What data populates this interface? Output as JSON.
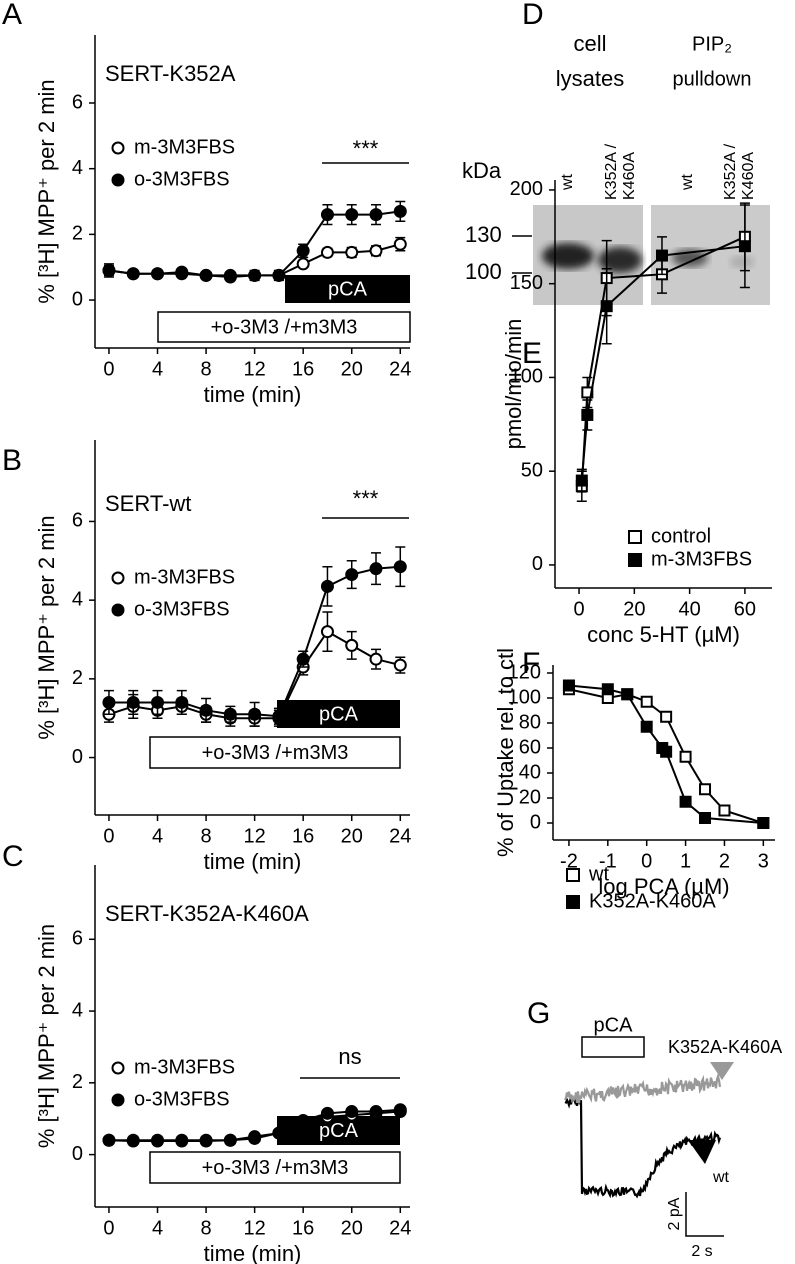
{
  "panel_labels": [
    "A",
    "B",
    "C",
    "D",
    "E",
    "F",
    "G"
  ],
  "chart_data": [
    {
      "type": "line",
      "title": "SERT-K352A",
      "x_label": "time (min)",
      "y_label": "% [³H] MPP⁺ per 2 min",
      "x": [
        0,
        2,
        4,
        6,
        8,
        10,
        12,
        14,
        16,
        18,
        20,
        22,
        24
      ],
      "xlim": [
        -1.15,
        24.8
      ],
      "xticks": [
        0,
        4,
        8,
        12,
        16,
        20,
        24
      ],
      "ylim": [
        -1.46,
        8.07
      ],
      "yticks": [
        0,
        2,
        4,
        6
      ],
      "series": [
        {
          "name": "m-3M3FBS",
          "marker": "circle-open",
          "color": "#000000",
          "values": [
            0.9,
            0.8,
            0.8,
            0.8,
            0.75,
            0.7,
            0.75,
            0.75,
            1.1,
            1.45,
            1.45,
            1.5,
            1.7
          ],
          "errors": [
            0.15,
            0.1,
            0.08,
            0.08,
            0.08,
            0.1,
            0.1,
            0.1,
            0.1,
            0.12,
            0.15,
            0.15,
            0.2
          ]
        },
        {
          "name": "o-3M3FBS",
          "marker": "circle-filled",
          "color": "#000000",
          "values": [
            0.9,
            0.8,
            0.8,
            0.85,
            0.75,
            0.75,
            0.75,
            0.75,
            1.5,
            2.6,
            2.6,
            2.6,
            2.7
          ],
          "errors": [
            0.2,
            0.1,
            0.08,
            0.1,
            0.08,
            0.1,
            0.15,
            0.15,
            0.2,
            0.3,
            0.3,
            0.3,
            0.3
          ]
        }
      ],
      "significance": "***",
      "treatment_bar": "pCA",
      "treatment_box": "+o-3M3 /+m3M3"
    },
    {
      "type": "line",
      "title": "SERT-wt",
      "x_label": "time (min)",
      "y_label": "% [³H] MPP⁺ per 2 min",
      "x": [
        0,
        2,
        4,
        6,
        8,
        10,
        12,
        14,
        16,
        18,
        20,
        22,
        24
      ],
      "xlim": [
        -1.15,
        24.8
      ],
      "xticks": [
        0,
        4,
        8,
        12,
        16,
        20,
        24
      ],
      "ylim": [
        -1.46,
        8.07
      ],
      "yticks": [
        0,
        2,
        4,
        6
      ],
      "series": [
        {
          "name": "m-3M3FBS",
          "marker": "circle-open",
          "color": "#000000",
          "values": [
            1.1,
            1.3,
            1.2,
            1.3,
            1.1,
            1.0,
            1.0,
            1.0,
            2.3,
            3.2,
            2.85,
            2.5,
            2.35
          ],
          "errors": [
            0.2,
            0.3,
            0.2,
            0.2,
            0.2,
            0.2,
            0.2,
            0.2,
            0.2,
            0.5,
            0.35,
            0.25,
            0.2
          ]
        },
        {
          "name": "o-3M3FBS",
          "marker": "circle-filled",
          "color": "#000000",
          "values": [
            1.4,
            1.4,
            1.4,
            1.4,
            1.2,
            1.1,
            1.1,
            1.05,
            2.5,
            4.35,
            4.65,
            4.8,
            4.85
          ],
          "errors": [
            0.3,
            0.3,
            0.3,
            0.3,
            0.3,
            0.2,
            0.3,
            0.2,
            0.2,
            0.5,
            0.35,
            0.4,
            0.5
          ]
        }
      ],
      "significance": "***",
      "treatment_bar": "pCA",
      "treatment_box": "+o-3M3 /+m3M3"
    },
    {
      "type": "line",
      "title": "SERT-K352A-K460A",
      "x_label": "time (min)",
      "y_label": "% [³H] MPP⁺ per 2 min",
      "x": [
        0,
        2,
        4,
        6,
        8,
        10,
        12,
        14,
        16,
        18,
        20,
        22,
        24
      ],
      "xlim": [
        -1.15,
        24.8
      ],
      "xticks": [
        0,
        4,
        8,
        12,
        16,
        20,
        24
      ],
      "ylim": [
        -1.46,
        8.07
      ],
      "yticks": [
        0,
        2,
        4,
        6
      ],
      "series": [
        {
          "name": "m-3M3FBS",
          "marker": "circle-open",
          "color": "#000000",
          "values": [
            0.4,
            0.38,
            0.38,
            0.38,
            0.38,
            0.4,
            0.45,
            0.6,
            0.9,
            1.05,
            1.1,
            1.15,
            1.2
          ]
        },
        {
          "name": "o-3M3FBS",
          "marker": "circle-filled",
          "color": "#000000",
          "values": [
            0.4,
            0.4,
            0.4,
            0.4,
            0.4,
            0.4,
            0.5,
            0.6,
            0.95,
            1.15,
            1.2,
            1.2,
            1.25
          ]
        }
      ],
      "significance": "ns",
      "treatment_bar": "pCA",
      "treatment_box": "+o-3M3 /+m3M3"
    },
    {
      "type": "line",
      "x_label": "conc 5-HT (µM)",
      "y_label": "pmol/mio/min",
      "xlim": [
        -8.7,
        69.8
      ],
      "xticks": [
        0,
        20,
        40,
        60
      ],
      "ylim": [
        -12.3,
        205.3
      ],
      "yticks": [
        0,
        50,
        100,
        150,
        200
      ],
      "series": [
        {
          "name": "control",
          "marker": "square-open",
          "color": "#000000",
          "x": [
            1,
            3,
            10,
            30,
            60
          ],
          "values": [
            42,
            92,
            153,
            155,
            175
          ],
          "errors": [
            8,
            8,
            20,
            10,
            18
          ]
        },
        {
          "name": "m-3M3FBS",
          "marker": "square-filled",
          "color": "#000000",
          "x": [
            1,
            3,
            10,
            30,
            60
          ],
          "values": [
            45,
            80,
            138,
            165,
            170
          ],
          "errors": [
            6,
            8,
            20,
            10,
            22
          ]
        }
      ]
    },
    {
      "type": "line",
      "x_label": "log PCA (µM)",
      "y_label": "% of Uptake rel. to ctl",
      "xlim": [
        -2.41,
        3.3
      ],
      "xticks": [
        -2,
        -1,
        0,
        1,
        2,
        3
      ],
      "ylim": [
        -13.6,
        126.4
      ],
      "yticks": [
        0,
        20,
        40,
        60,
        80,
        100,
        120
      ],
      "series": [
        {
          "name": "wt",
          "marker": "square-open",
          "color": "#000000",
          "x": [
            -2,
            -1,
            -0.5,
            0,
            0.5,
            1,
            1.5,
            2,
            3
          ],
          "values": [
            107,
            100,
            103,
            97,
            85,
            53,
            27,
            10,
            0
          ]
        },
        {
          "name": "K352A-K460A",
          "marker": "square-filled",
          "color": "#000000",
          "x": [
            -2,
            -1,
            -0.5,
            0,
            0.4,
            0.5,
            1,
            1.5,
            3
          ],
          "values": [
            110,
            107,
            103,
            77,
            60,
            57,
            17,
            4,
            0
          ]
        }
      ]
    }
  ],
  "blot": {
    "groups": [
      [
        "cell",
        "lysates"
      ],
      [
        "PIP₂",
        "pulldown"
      ]
    ],
    "unit": "kDa",
    "lanes": [
      [
        "wt"
      ],
      [
        "K352A /",
        "K460A"
      ],
      [
        "wt"
      ],
      [
        "K352A /",
        "K460A"
      ]
    ],
    "markers": [
      "130",
      "100"
    ]
  },
  "trace": {
    "stimulus": "pCA",
    "mutant": "K352A-K460A",
    "wild_type": "wt",
    "scale_y": "2 pA",
    "scale_x": "2 s"
  }
}
